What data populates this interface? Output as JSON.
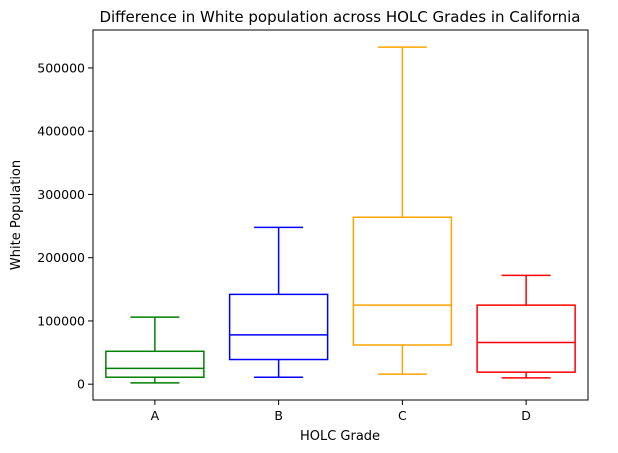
{
  "chart_data": {
    "type": "box",
    "title": "Difference in White population across HOLC Grades in California",
    "xlabel": "HOLC Grade",
    "ylabel": "White Population",
    "ylim": [
      -25000,
      560000
    ],
    "yticks": [
      0,
      100000,
      200000,
      300000,
      400000,
      500000
    ],
    "ytick_labels": [
      "0",
      "100000",
      "200000",
      "300000",
      "400000",
      "500000"
    ],
    "grid": false,
    "categories": [
      "A",
      "B",
      "C",
      "D"
    ],
    "boxes": [
      {
        "name": "A",
        "color": "#008000",
        "whisker_low": 2000,
        "q1": 11000,
        "median": 25000,
        "q3": 52000,
        "whisker_high": 106000
      },
      {
        "name": "B",
        "color": "#0000ff",
        "whisker_low": 11000,
        "q1": 39000,
        "median": 78000,
        "q3": 142000,
        "whisker_high": 248000
      },
      {
        "name": "C",
        "color": "#ffa500",
        "whisker_low": 16000,
        "q1": 62000,
        "median": 125000,
        "q3": 264000,
        "whisker_high": 533000
      },
      {
        "name": "D",
        "color": "#ff0000",
        "whisker_low": 10000,
        "q1": 19000,
        "median": 66000,
        "q3": 125000,
        "whisker_high": 172000
      }
    ]
  }
}
